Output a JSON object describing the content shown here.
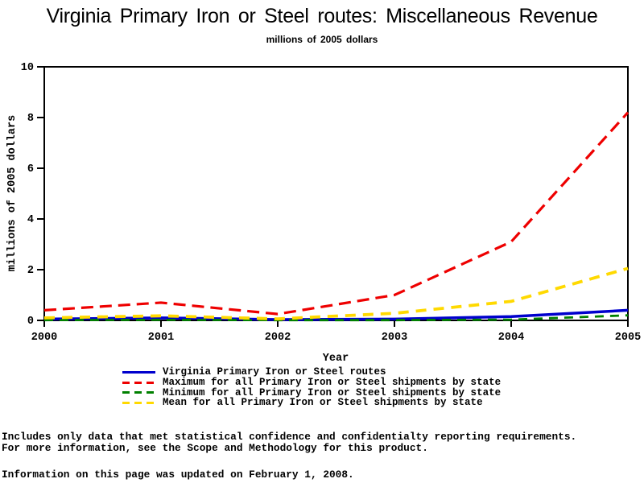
{
  "header": {
    "title": "Virginia Primary Iron or Steel routes: Miscellaneous Revenue",
    "subtitle": "millions of 2005 dollars"
  },
  "chart_data": {
    "type": "line",
    "title": "Virginia Primary Iron or Steel routes: Miscellaneous Revenue",
    "subtitle": "millions of 2005 dollars",
    "xlabel": "Year",
    "ylabel": "millions of 2005 dollars",
    "x": [
      2000,
      2001,
      2002,
      2003,
      2004,
      2005
    ],
    "xlim": [
      2000,
      2005
    ],
    "ylim": [
      0,
      10
    ],
    "yticks": [
      0,
      2,
      4,
      6,
      8,
      10
    ],
    "grid": false,
    "legend_position": "bottom",
    "series": [
      {
        "name": "Virginia Primary Iron or Steel routes",
        "color": "#0000cd",
        "style": "solid",
        "values": [
          0.05,
          0.1,
          0.03,
          0.05,
          0.15,
          0.4
        ]
      },
      {
        "name": "Maximum for all Primary Iron or Steel shipments by state",
        "color": "#ee0000",
        "style": "dashed",
        "values": [
          0.4,
          0.7,
          0.25,
          1.0,
          3.1,
          8.2
        ]
      },
      {
        "name": "Minimum for all Primary Iron or Steel shipments by state",
        "color": "#008000",
        "style": "dashed",
        "values": [
          0.01,
          0.02,
          0.01,
          0.01,
          0.03,
          0.2
        ]
      },
      {
        "name": "Mean for all Primary Iron or Steel shipments by state",
        "color": "#ffd900",
        "style": "dashed",
        "values": [
          0.1,
          0.18,
          0.06,
          0.28,
          0.75,
          2.05
        ]
      }
    ]
  },
  "footnotes": {
    "line1": "Includes only data that met statistical confidence and confidentialty reporting requirements.",
    "line2": "For more information, see the Scope and Methodology for this product.",
    "updated": "Information on this page was updated on February 1, 2008."
  }
}
